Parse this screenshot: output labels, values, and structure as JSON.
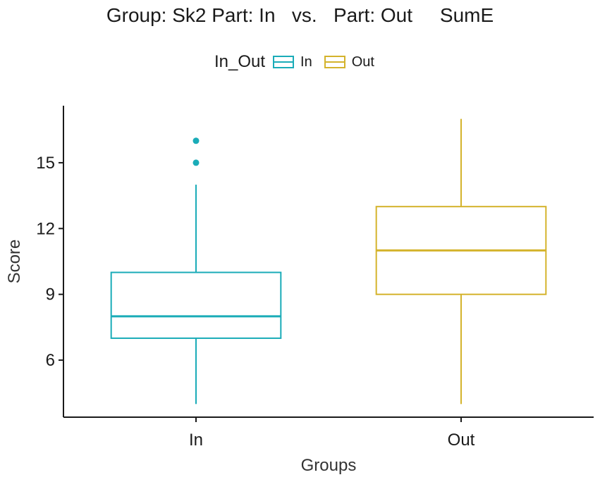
{
  "title": "Group: Sk2 Part: In   vs.   Part: Out     SumE",
  "legend": {
    "title": "In_Out",
    "position": "top",
    "items": [
      {
        "label": "In",
        "color": "#1AACB8"
      },
      {
        "label": "Out",
        "color": "#D4B32C"
      }
    ]
  },
  "chart_data": {
    "type": "boxplot",
    "xlabel": "Groups",
    "ylabel": "Score",
    "ylim": [
      3.4,
      17.6
    ],
    "yticks": [
      6,
      9,
      12,
      15
    ],
    "yticklabels": [
      "6",
      "9",
      "12",
      "15"
    ],
    "categories": [
      "In",
      "Out"
    ],
    "grid": false,
    "series": [
      {
        "name": "In",
        "color": "#1AACB8",
        "min": 4,
        "q1": 7,
        "median": 8,
        "q3": 10,
        "max": 14,
        "outliers": [
          15,
          16
        ]
      },
      {
        "name": "Out",
        "color": "#D4B32C",
        "min": 4,
        "q1": 9,
        "median": 11,
        "q3": 13,
        "max": 17,
        "outliers": []
      }
    ]
  }
}
